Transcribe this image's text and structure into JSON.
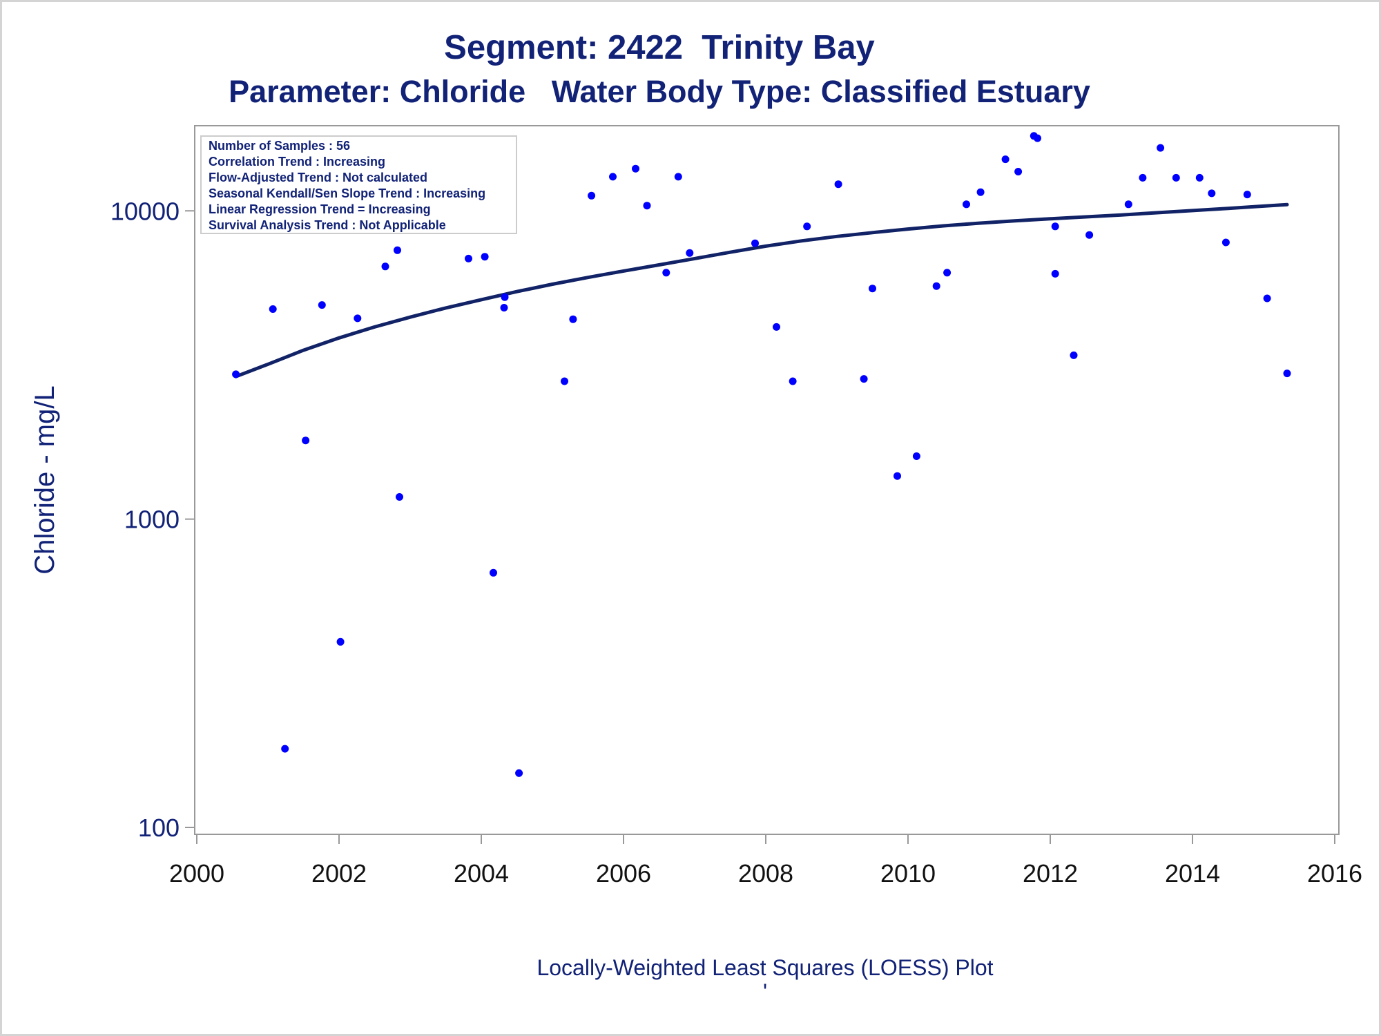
{
  "chart_data": {
    "type": "scatter",
    "title": "Segment: 2422  Trinity Bay",
    "subtitle": "Parameter: Chloride   Water Body Type: Classified Estuary",
    "ylabel": "Chloride - mg/L",
    "xlabel": "",
    "footnote": "Locally-Weighted Least Squares (LOESS) Plot",
    "footnote_mark": "'",
    "y_scale": "log",
    "xlim": [
      2000,
      2016
    ],
    "ylim": [
      100,
      18500
    ],
    "x_ticks": [
      2000,
      2002,
      2004,
      2006,
      2008,
      2010,
      2012,
      2014,
      2016
    ],
    "y_ticks": [
      100,
      1000,
      10000
    ],
    "grid": false,
    "legend_position": "top-left",
    "stats_box": [
      "Number of Samples : 56",
      "Correlation Trend : Increasing",
      "Flow-Adjusted Trend : Not calculated",
      "Seasonal Kendall/Sen Slope Trend : Increasing",
      "Linear Regression Trend = Increasing",
      "Survival Analysis Trend : Not Applicable"
    ],
    "colors": {
      "points": "#0000ff",
      "line": "#112266",
      "text": "#112277"
    },
    "series": [
      {
        "type": "scatter",
        "points": [
          [
            2000.55,
            2950
          ],
          [
            2001.07,
            4800
          ],
          [
            2001.24,
            180
          ],
          [
            2001.53,
            1800
          ],
          [
            2001.76,
            4950
          ],
          [
            2002.02,
            400
          ],
          [
            2002.26,
            4480
          ],
          [
            2002.65,
            6600
          ],
          [
            2002.82,
            7450
          ],
          [
            2002.85,
            1180
          ],
          [
            2003.82,
            7000
          ],
          [
            2004.05,
            7100
          ],
          [
            2004.17,
            670
          ],
          [
            2004.32,
            4850
          ],
          [
            2004.33,
            5250
          ],
          [
            2004.53,
            150
          ],
          [
            2005.17,
            2800
          ],
          [
            2005.29,
            4450
          ],
          [
            2005.55,
            11200
          ],
          [
            2005.85,
            12900
          ],
          [
            2006.17,
            13700
          ],
          [
            2006.33,
            10400
          ],
          [
            2006.6,
            6300
          ],
          [
            2006.77,
            12900
          ],
          [
            2006.93,
            7300
          ],
          [
            2007.85,
            7850
          ],
          [
            2008.15,
            4200
          ],
          [
            2008.38,
            2800
          ],
          [
            2008.58,
            8900
          ],
          [
            2009.02,
            12200
          ],
          [
            2009.38,
            2850
          ],
          [
            2009.5,
            5600
          ],
          [
            2009.85,
            1380
          ],
          [
            2010.12,
            1600
          ],
          [
            2010.4,
            5700
          ],
          [
            2010.55,
            6300
          ],
          [
            2010.82,
            10500
          ],
          [
            2011.02,
            11500
          ],
          [
            2011.37,
            14700
          ],
          [
            2011.55,
            13400
          ],
          [
            2011.77,
            17500
          ],
          [
            2011.82,
            17200
          ],
          [
            2012.07,
            8900
          ],
          [
            2012.07,
            6250
          ],
          [
            2012.33,
            3400
          ],
          [
            2012.55,
            8350
          ],
          [
            2013.1,
            10500
          ],
          [
            2013.3,
            12800
          ],
          [
            2013.55,
            16000
          ],
          [
            2013.77,
            12800
          ],
          [
            2014.1,
            12800
          ],
          [
            2014.27,
            11400
          ],
          [
            2014.47,
            7900
          ],
          [
            2014.77,
            11300
          ],
          [
            2015.05,
            5200
          ],
          [
            2015.33,
            2970
          ]
        ]
      },
      {
        "type": "line",
        "points": [
          [
            2000.55,
            2900
          ],
          [
            2001.0,
            3180
          ],
          [
            2001.5,
            3530
          ],
          [
            2002.0,
            3870
          ],
          [
            2002.5,
            4200
          ],
          [
            2003.0,
            4520
          ],
          [
            2003.5,
            4840
          ],
          [
            2004.0,
            5150
          ],
          [
            2004.5,
            5470
          ],
          [
            2005.0,
            5780
          ],
          [
            2005.5,
            6080
          ],
          [
            2006.0,
            6380
          ],
          [
            2006.5,
            6680
          ],
          [
            2007.0,
            7000
          ],
          [
            2007.5,
            7340
          ],
          [
            2008.0,
            7680
          ],
          [
            2008.5,
            7990
          ],
          [
            2009.0,
            8260
          ],
          [
            2009.5,
            8500
          ],
          [
            2010.0,
            8730
          ],
          [
            2010.5,
            8940
          ],
          [
            2011.0,
            9120
          ],
          [
            2011.5,
            9280
          ],
          [
            2012.0,
            9420
          ],
          [
            2012.5,
            9560
          ],
          [
            2013.0,
            9700
          ],
          [
            2013.5,
            9860
          ],
          [
            2014.0,
            10020
          ],
          [
            2014.5,
            10180
          ],
          [
            2015.0,
            10360
          ],
          [
            2015.33,
            10480
          ]
        ]
      }
    ]
  }
}
